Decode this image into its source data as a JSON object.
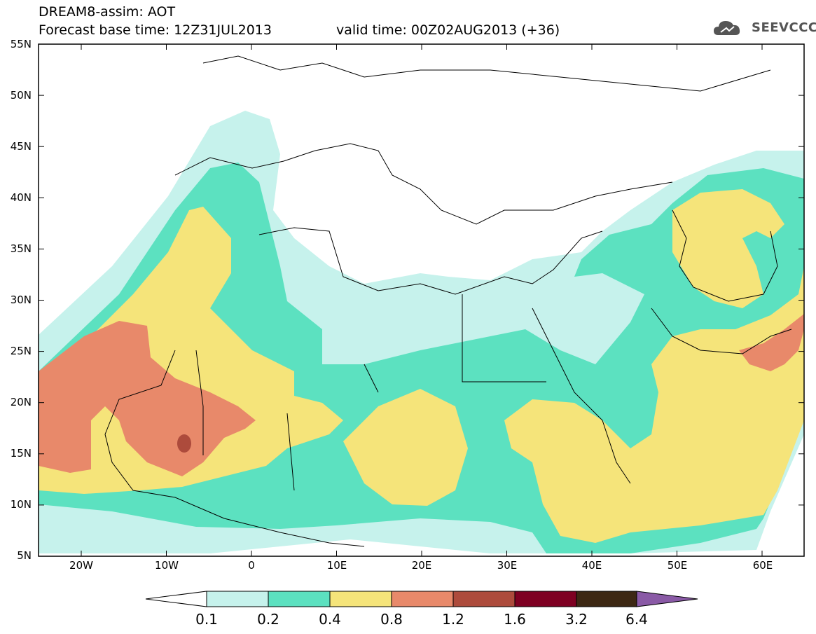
{
  "header": {
    "title": "DREAM8-assim: AOT",
    "base_time": "Forecast base time: 12Z31JUL2013",
    "valid_time": "valid time: 00Z02AUG2013 (+36)"
  },
  "logo": {
    "text": "SEEVCCC",
    "icon": "cloud-icon"
  },
  "map": {
    "variable": "AOT",
    "lat_labels": [
      "55N",
      "50N",
      "45N",
      "40N",
      "35N",
      "30N",
      "25N",
      "20N",
      "15N",
      "10N",
      "5N"
    ],
    "lon_labels": [
      "20W",
      "10W",
      "0",
      "10E",
      "20E",
      "30E",
      "40E",
      "50E",
      "60E"
    ]
  },
  "colorbar": {
    "labels": [
      "0.1",
      "0.2",
      "0.4",
      "0.8",
      "1.2",
      "1.6",
      "3.2",
      "6.4"
    ],
    "colors": [
      "#ffffff",
      "#c6f2ec",
      "#5ce1c0",
      "#f5e47a",
      "#e8896a",
      "#ad4b3c",
      "#7e0022",
      "#3d2814",
      "#8a5aa6"
    ]
  },
  "colors": {
    "class_0_1": "#c6f2ec",
    "class_0_2": "#5ce1c0",
    "class_0_4": "#f5e47a",
    "class_0_8": "#e8896a",
    "class_1_2": "#ad4b3c"
  }
}
